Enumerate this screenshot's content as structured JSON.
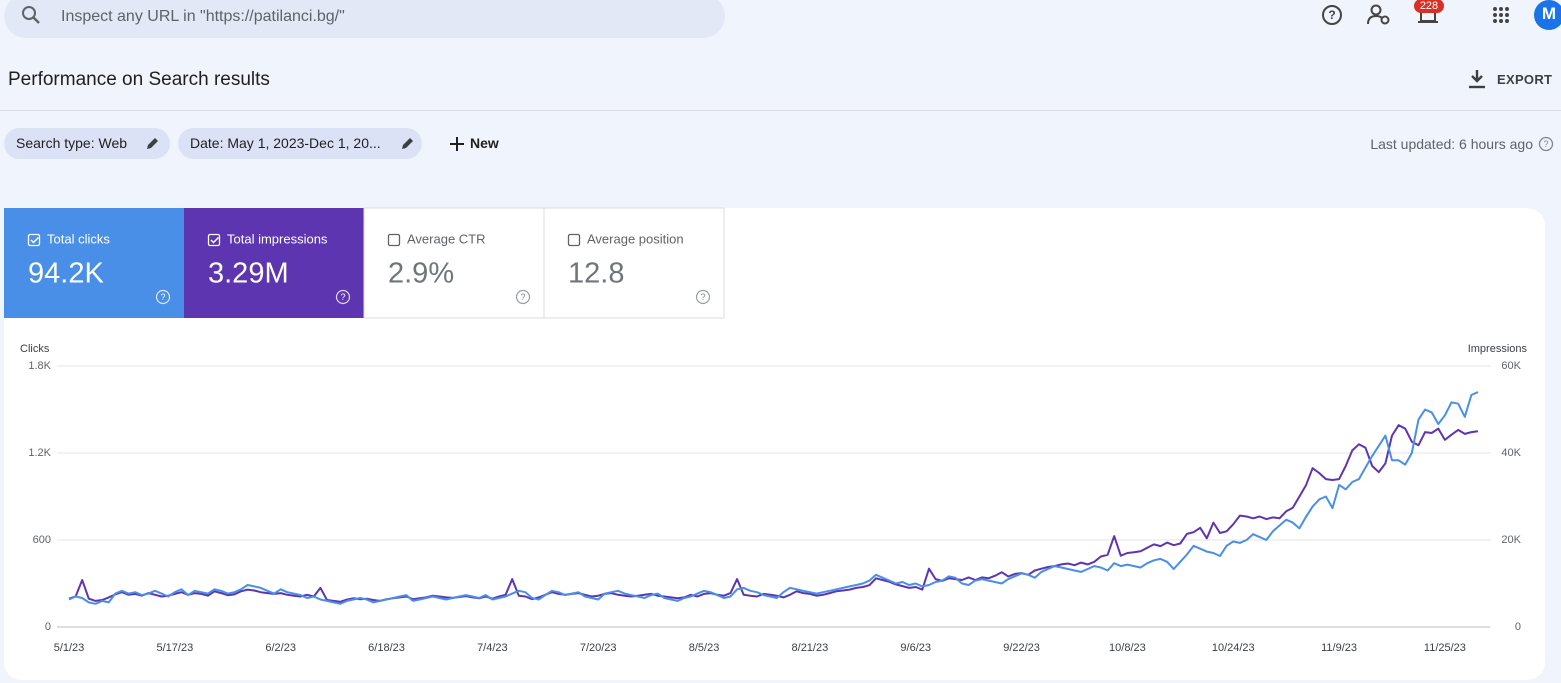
{
  "header": {
    "search_placeholder": "Inspect any URL in \"https://patilanci.bg/\"",
    "notification_count": 228,
    "avatar": "M"
  },
  "page_title": "Performance on Search results",
  "export": "EXPORT",
  "filters": [
    "Search type: Web",
    "Date: May 1, 2023-Dec 1, 20..."
  ],
  "new_button": "New",
  "last_updated": "Last updated: 6 hours ago",
  "metrics": [
    {
      "label": "Total clicks",
      "value": "94.2K",
      "checked": true
    },
    {
      "label": "Total impressions",
      "value": "3.29M",
      "checked": true
    },
    {
      "label": "Average CTR",
      "value": "2.9%",
      "checked": false
    },
    {
      "label": "Average position",
      "value": "12.8",
      "checked": false
    }
  ],
  "chart_data": {
    "type": "line",
    "grid": true,
    "categories": [
      "5/1/23",
      null,
      null,
      null,
      null,
      null,
      null,
      null,
      null,
      null,
      null,
      null,
      null,
      null,
      null,
      null,
      "5/17/23",
      null,
      null,
      null,
      null,
      null,
      null,
      null,
      null,
      null,
      null,
      null,
      null,
      null,
      null,
      null,
      "6/2/23",
      null,
      null,
      null,
      null,
      null,
      null,
      null,
      null,
      null,
      null,
      null,
      null,
      null,
      null,
      null,
      "6/18/23",
      null,
      null,
      null,
      null,
      null,
      null,
      null,
      null,
      null,
      null,
      null,
      null,
      null,
      null,
      null,
      "7/4/23",
      null,
      null,
      null,
      null,
      null,
      null,
      null,
      null,
      null,
      null,
      null,
      null,
      null,
      null,
      null,
      "7/20/23",
      null,
      null,
      null,
      null,
      null,
      null,
      null,
      null,
      null,
      null,
      null,
      null,
      null,
      null,
      null,
      "8/5/23",
      null,
      null,
      null,
      null,
      null,
      null,
      null,
      null,
      null,
      null,
      null,
      null,
      null,
      null,
      null,
      "8/21/23",
      null,
      null,
      null,
      null,
      null,
      null,
      null,
      null,
      null,
      null,
      null,
      null,
      null,
      null,
      null,
      "9/6/23",
      null,
      null,
      null,
      null,
      null,
      null,
      null,
      null,
      null,
      null,
      null,
      null,
      null,
      null,
      null,
      "9/22/23",
      null,
      null,
      null,
      null,
      null,
      null,
      null,
      null,
      null,
      null,
      null,
      null,
      null,
      null,
      null,
      "10/8/23",
      null,
      null,
      null,
      null,
      null,
      null,
      null,
      null,
      null,
      null,
      null,
      null,
      null,
      null,
      null,
      "10/24/23",
      null,
      null,
      null,
      null,
      null,
      null,
      null,
      null,
      null,
      null,
      null,
      null,
      null,
      null,
      null,
      "11/9/23",
      null,
      null,
      null,
      null,
      null,
      null,
      null,
      null,
      null,
      null,
      null,
      null,
      null,
      null,
      null,
      "11/25/23",
      null,
      null,
      null,
      null,
      null
    ],
    "ylim": [
      0,
      1800
    ],
    "yticks": [
      0,
      600,
      {
        "value": 1200,
        "label": "1.2K"
      },
      {
        "value": 1800,
        "label": "1.8K"
      }
    ],
    "y2lim": [
      0,
      60000
    ],
    "y2ticks": [
      0,
      {
        "value": 20000,
        "label": "20K"
      },
      {
        "value": 40000,
        "label": "40K"
      },
      {
        "value": 60000,
        "label": "60K"
      }
    ],
    "series": [
      {
        "name": "Clicks",
        "color": "#4a8fe7",
        "values": [
          190,
          210,
          200,
          170,
          160,
          180,
          170,
          230,
          250,
          230,
          240,
          220,
          230,
          250,
          230,
          210,
          240,
          260,
          220,
          250,
          240,
          230,
          260,
          250,
          230,
          240,
          260,
          290,
          280,
          270,
          250,
          230,
          260,
          240,
          230,
          220,
          200,
          210,
          190,
          180,
          170,
          160,
          180,
          190,
          200,
          190,
          170,
          180,
          190,
          200,
          210,
          220,
          180,
          190,
          200,
          210,
          200,
          190,
          200,
          210,
          220,
          210,
          200,
          220,
          190,
          200,
          210,
          230,
          250,
          240,
          200,
          190,
          220,
          250,
          240,
          220,
          230,
          240,
          210,
          200,
          190,
          230,
          240,
          250,
          230,
          220,
          210,
          200,
          220,
          230,
          200,
          190,
          180,
          200,
          210,
          230,
          250,
          240,
          220,
          200,
          210,
          260,
          270,
          250,
          240,
          220,
          210,
          200,
          240,
          270,
          260,
          250,
          240,
          230,
          240,
          250,
          260,
          270,
          280,
          290,
          300,
          320,
          360,
          340,
          320,
          300,
          310,
          290,
          300,
          280,
          290,
          310,
          320,
          350,
          340,
          300,
          290,
          320,
          330,
          320,
          310,
          300,
          330,
          350,
          370,
          360,
          340,
          380,
          400,
          420,
          410,
          400,
          390,
          380,
          400,
          420,
          410,
          390,
          440,
          420,
          430,
          420,
          410,
          440,
          460,
          470,
          450,
          400,
          450,
          500,
          560,
          540,
          520,
          510,
          490,
          560,
          590,
          580,
          600,
          640,
          620,
          600,
          660,
          700,
          740,
          720,
          680,
          760,
          830,
          880,
          900,
          820,
          980,
          950,
          1000,
          1020,
          1100,
          1180,
          1250,
          1320,
          1150,
          1150,
          1120,
          1200,
          1430,
          1500,
          1480,
          1400,
          1460,
          1550,
          1540,
          1450,
          1600,
          1620
        ]
      },
      {
        "name": "Impressions",
        "color": "#5e35b1",
        "axis": "y2",
        "values": [
          6500,
          7000,
          10800,
          6500,
          6000,
          6200,
          6800,
          7500,
          8000,
          7400,
          7600,
          7200,
          7800,
          7400,
          7000,
          7200,
          7600,
          8000,
          7400,
          7800,
          7600,
          7200,
          8200,
          7800,
          7300,
          7500,
          8200,
          8600,
          8400,
          8000,
          7800,
          7600,
          7800,
          7400,
          7200,
          7000,
          7400,
          7000,
          9000,
          6200,
          6000,
          5800,
          6300,
          6600,
          6400,
          6500,
          6200,
          6000,
          6400,
          6600,
          6800,
          7000,
          6400,
          6600,
          6800,
          7200,
          7000,
          6800,
          6700,
          6900,
          7100,
          6800,
          6600,
          7000,
          6500,
          7000,
          7400,
          11000,
          7200,
          7000,
          6400,
          6800,
          7400,
          8000,
          7600,
          7400,
          7600,
          7800,
          7400,
          7000,
          7200,
          7600,
          7800,
          7400,
          7200,
          7000,
          7200,
          7400,
          7600,
          7200,
          7000,
          6800,
          6600,
          6800,
          7400,
          7000,
          7600,
          7800,
          7400,
          7200,
          7800,
          11000,
          7400,
          7200,
          7000,
          7600,
          7400,
          7200,
          6800,
          7400,
          8200,
          7800,
          7600,
          7200,
          7400,
          7800,
          8200,
          8400,
          8600,
          9000,
          9200,
          9600,
          11200,
          10800,
          10400,
          9800,
          9400,
          9000,
          9200,
          8600,
          13400,
          11000,
          10600,
          11200,
          11000,
          10800,
          11400,
          10800,
          11400,
          11200,
          11800,
          12600,
          11600,
          12200,
          12400,
          12000,
          13000,
          13400,
          13800,
          14000,
          14400,
          14600,
          14200,
          14800,
          14400,
          15000,
          16200,
          16600,
          20900,
          16400,
          17000,
          17200,
          17400,
          18200,
          19000,
          18600,
          19400,
          18800,
          19200,
          21400,
          21800,
          22800,
          20400,
          24000,
          21600,
          22000,
          23600,
          25600,
          25400,
          25000,
          25400,
          24800,
          25200,
          25000,
          26600,
          27400,
          30000,
          32600,
          36500,
          35400,
          34000,
          33800,
          34000,
          37000,
          40600,
          42000,
          41200,
          37000,
          35600,
          37600,
          44000,
          46400,
          45600,
          42600,
          41800,
          44800,
          44600,
          45600,
          43000,
          44200,
          45300,
          44400,
          44800,
          45000
        ]
      }
    ]
  }
}
